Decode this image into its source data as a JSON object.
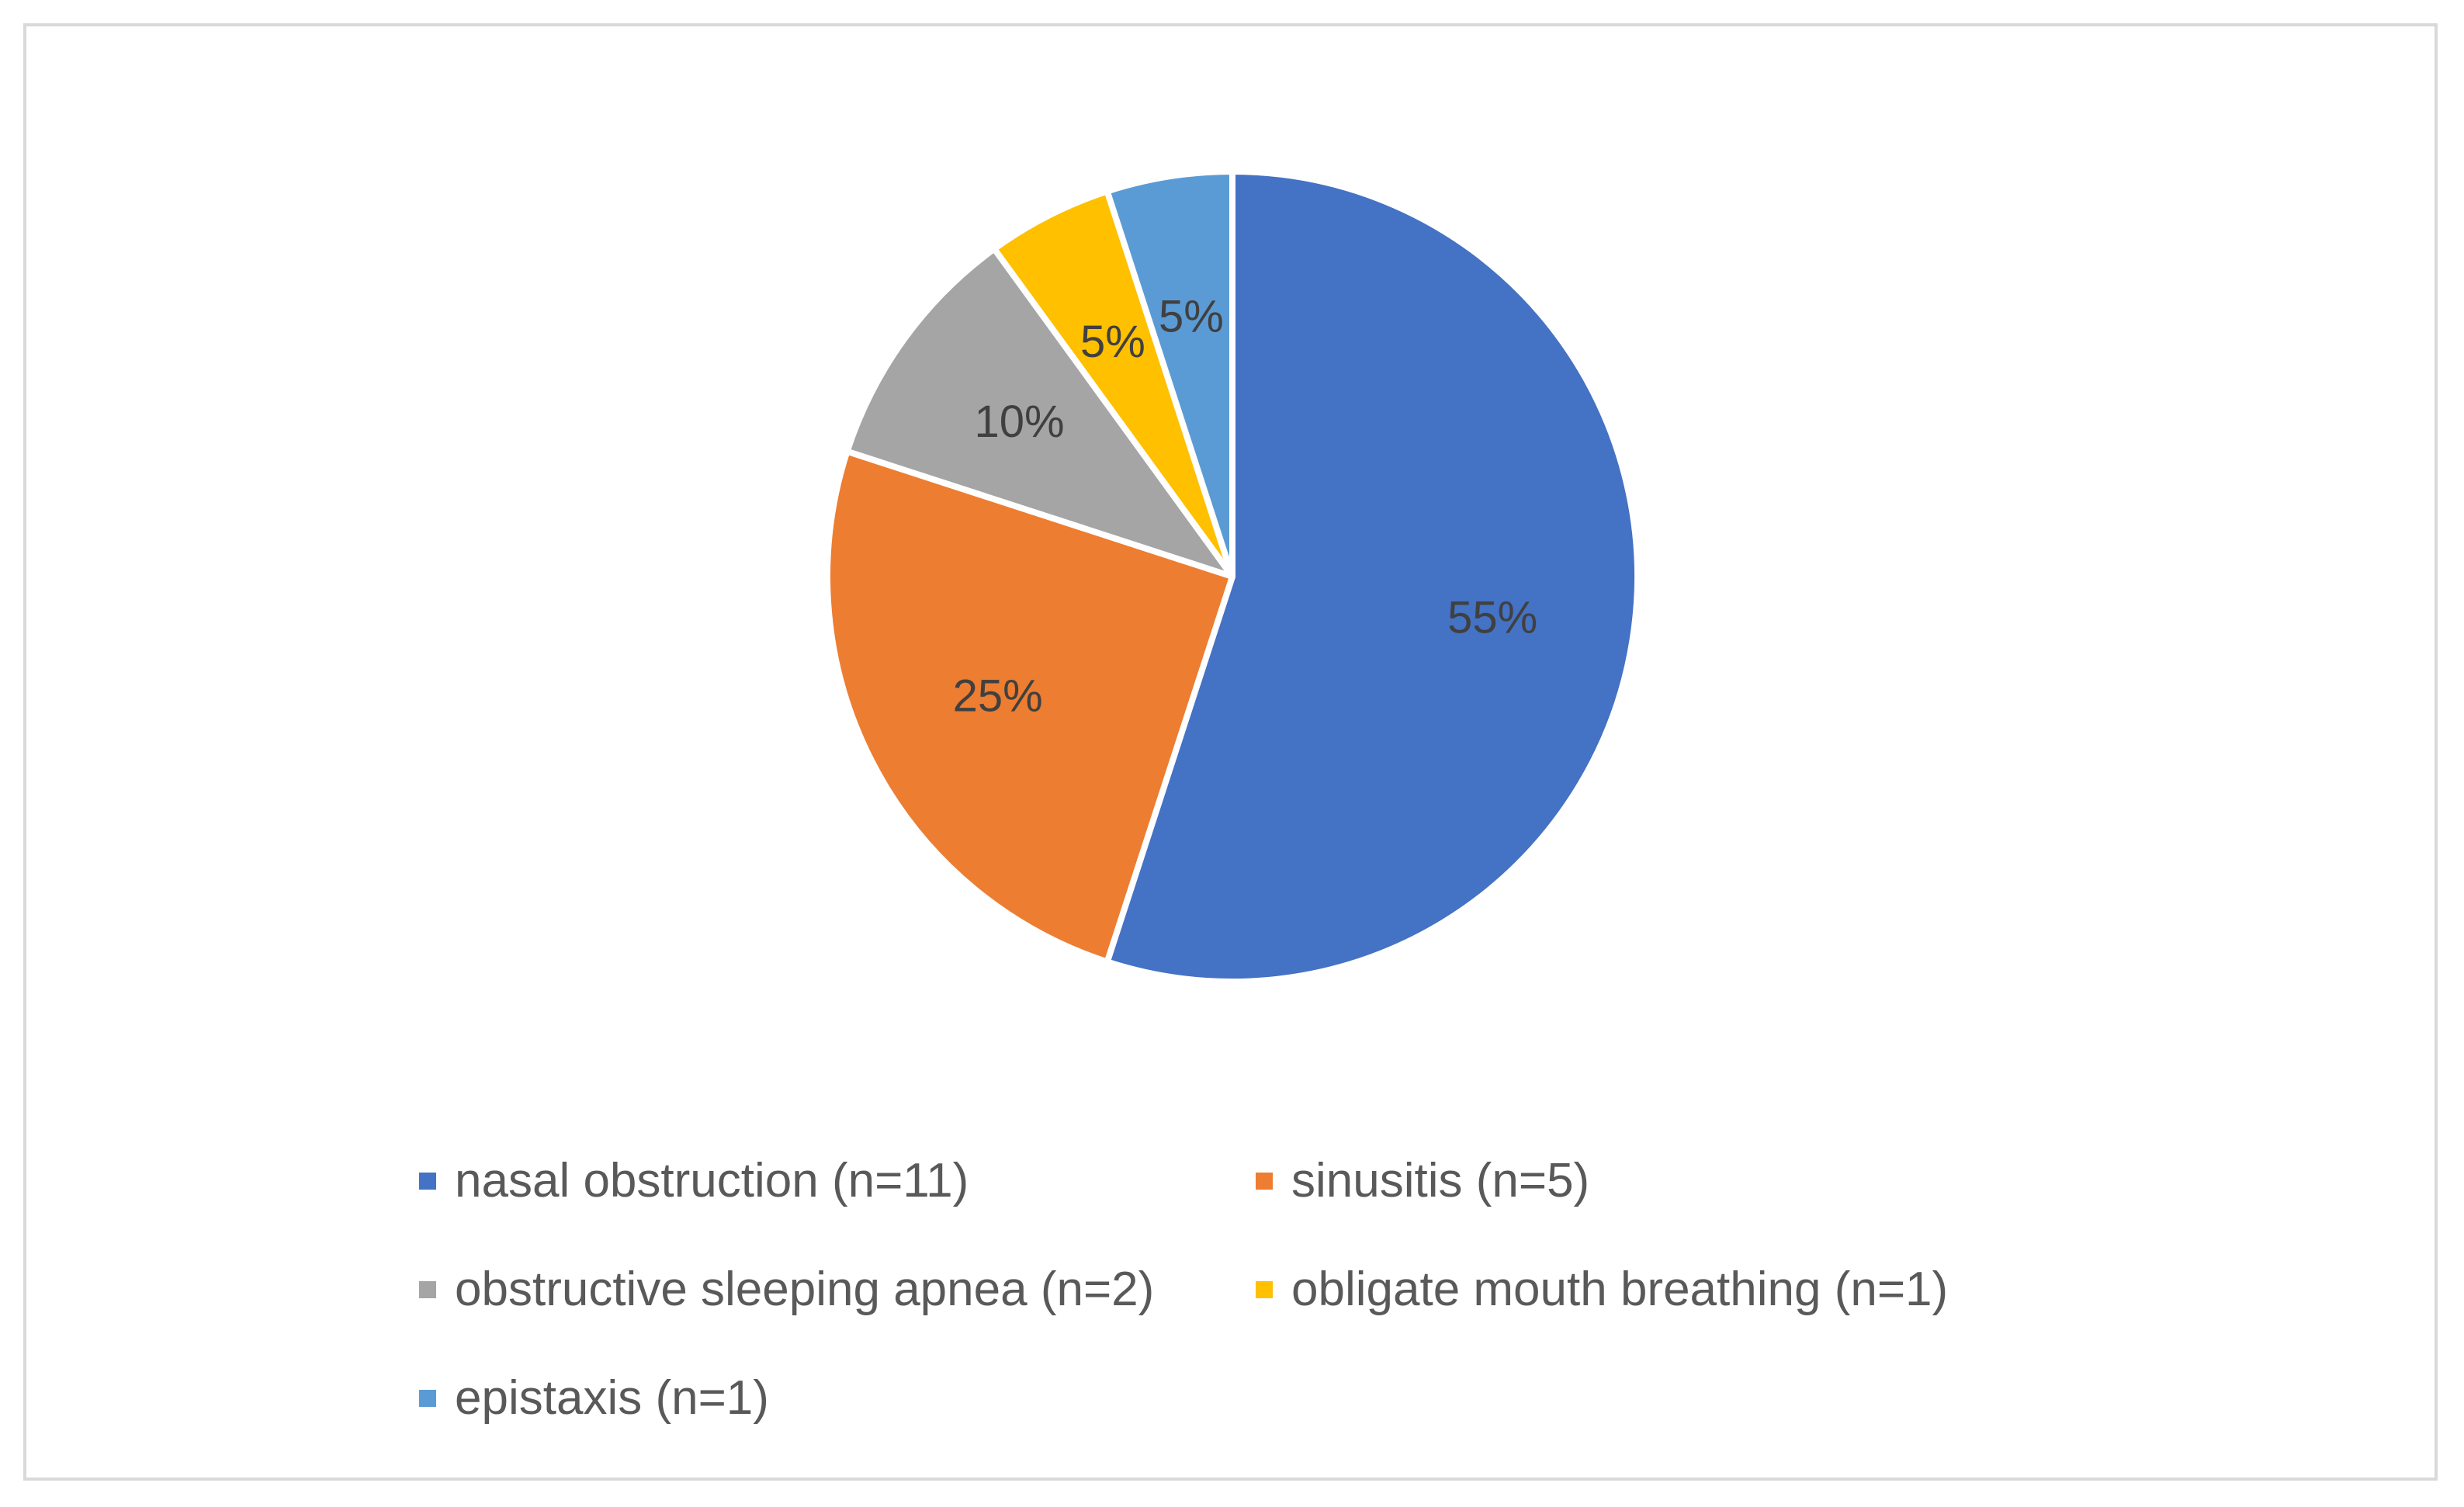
{
  "chart_data": {
    "type": "pie",
    "title": "",
    "slices": [
      {
        "name": "nasal obstruction (n=11)",
        "value": 55,
        "label": "55%",
        "color": "#4472C4"
      },
      {
        "name": "sinusitis (n=5)",
        "value": 25,
        "label": "25%",
        "color": "#ED7D31"
      },
      {
        "name": "obstructive sleeping apnea (n=2)",
        "value": 10,
        "label": "10%",
        "color": "#A5A5A5"
      },
      {
        "name": "obligate mouth breathing (n=1)",
        "value": 5,
        "label": "5%",
        "color": "#FFC000"
      },
      {
        "name": "epistaxis (n=1)",
        "value": 5,
        "label": "5%",
        "color": "#5B9BD5"
      }
    ],
    "legend_position": "bottom"
  }
}
